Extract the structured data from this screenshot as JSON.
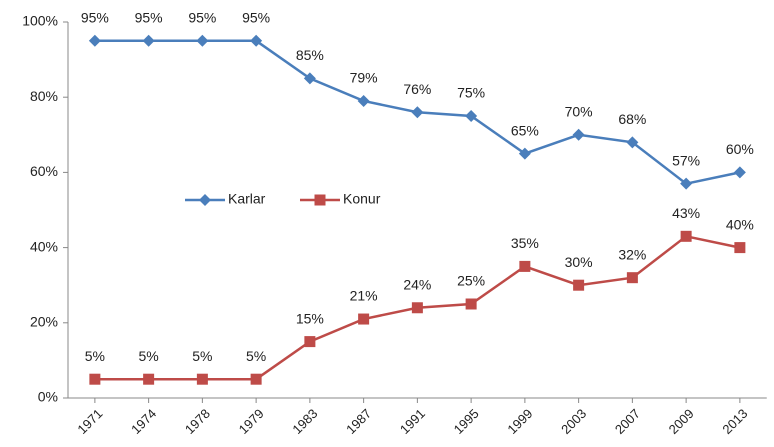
{
  "chart_data": {
    "type": "line",
    "categories": [
      "1971",
      "1974",
      "1978",
      "1979",
      "1983",
      "1987",
      "1991",
      "1995",
      "1999",
      "2003",
      "2007",
      "2009",
      "2013"
    ],
    "series": [
      {
        "name": "Karlar",
        "color": "#4a7ebb",
        "marker": "diamond",
        "values": [
          95,
          95,
          95,
          95,
          85,
          79,
          76,
          75,
          65,
          70,
          68,
          57,
          60
        ],
        "value_labels": [
          "95%",
          "95%",
          "95%",
          "95%",
          "85%",
          "79%",
          "76%",
          "75%",
          "65%",
          "70%",
          "68%",
          "57%",
          "60%"
        ]
      },
      {
        "name": "Konur",
        "color": "#be4b48",
        "marker": "square",
        "values": [
          5,
          5,
          5,
          5,
          15,
          21,
          24,
          25,
          35,
          30,
          32,
          43,
          40
        ],
        "value_labels": [
          "5%",
          "5%",
          "5%",
          "5%",
          "15%",
          "21%",
          "24%",
          "25%",
          "35%",
          "30%",
          "32%",
          "43%",
          "40%"
        ]
      }
    ],
    "ylim": [
      0,
      100
    ],
    "yticks": [
      {
        "value": 0,
        "label": "0%"
      },
      {
        "value": 20,
        "label": "20%"
      },
      {
        "value": 40,
        "label": "40%"
      },
      {
        "value": 60,
        "label": "60%"
      },
      {
        "value": 80,
        "label": "80%"
      },
      {
        "value": 100,
        "label": "100%"
      }
    ],
    "grid": false,
    "legend": "inside-left"
  }
}
